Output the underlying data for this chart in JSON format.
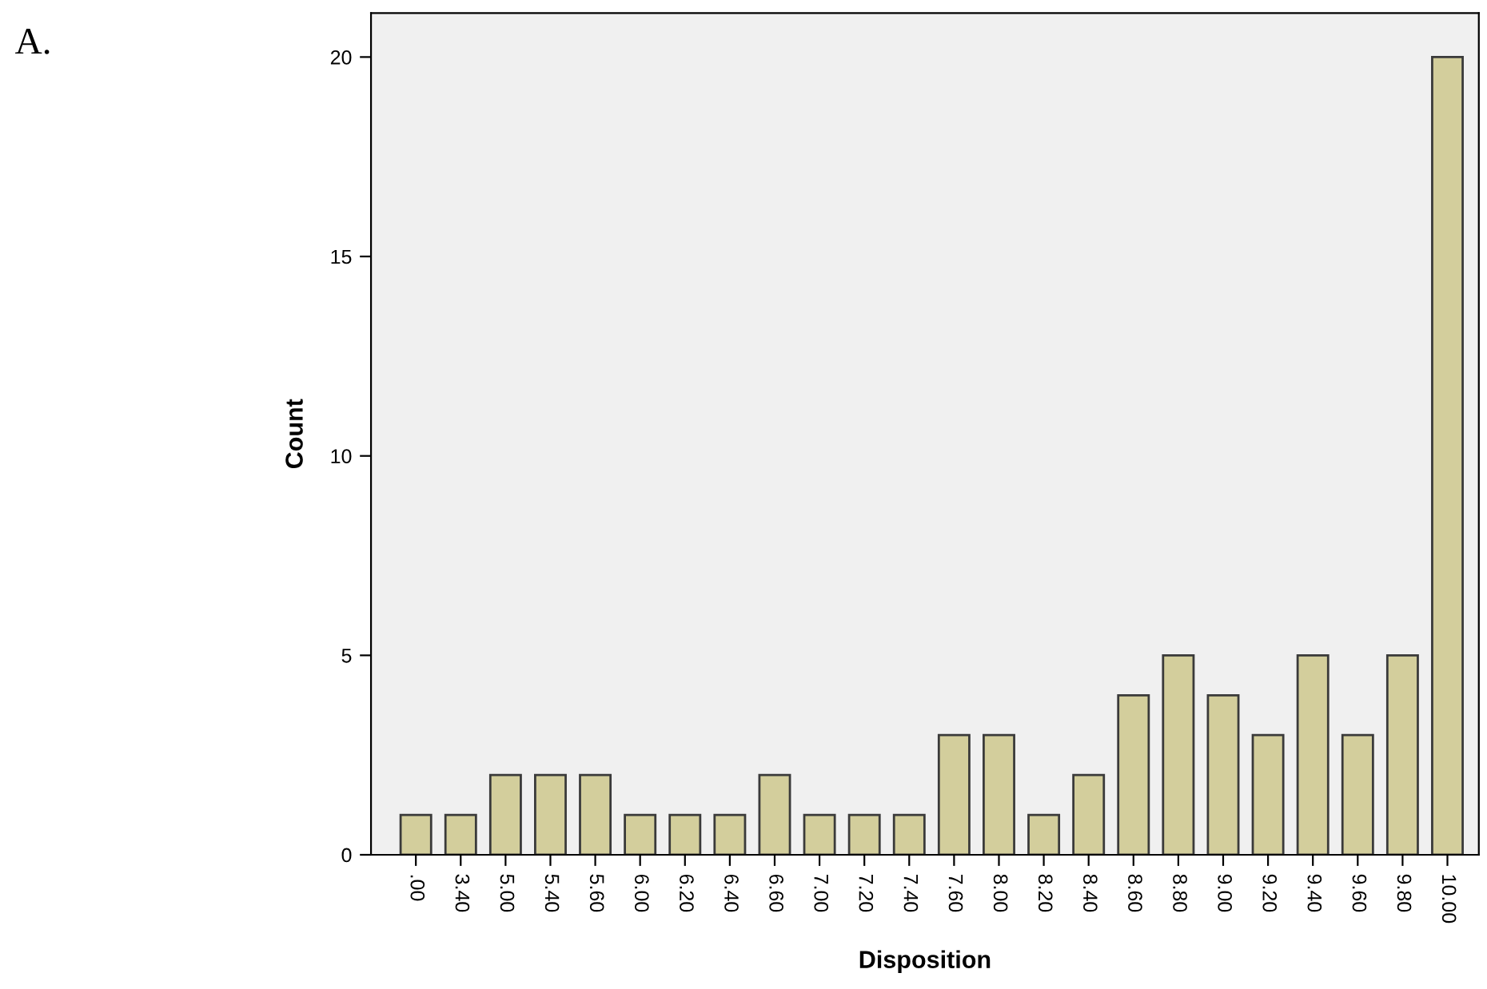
{
  "chart_data": {
    "type": "bar",
    "categories": [
      ".00",
      "3.40",
      "5.00",
      "5.40",
      "5.60",
      "6.00",
      "6.20",
      "6.40",
      "6.60",
      "7.00",
      "7.20",
      "7.40",
      "7.60",
      "8.00",
      "8.20",
      "8.40",
      "8.60",
      "8.80",
      "9.00",
      "9.20",
      "9.40",
      "9.60",
      "9.80",
      "10.00"
    ],
    "values": [
      1,
      1,
      2,
      2,
      2,
      1,
      1,
      1,
      2,
      1,
      1,
      1,
      3,
      3,
      1,
      2,
      4,
      5,
      4,
      3,
      5,
      3,
      5,
      20
    ],
    "color": "#d3ce9c",
    "xlabel": "Disposition",
    "ylabel": "Count",
    "ylim": [
      0,
      21.1
    ],
    "yticks": [
      0,
      5,
      10,
      15,
      20
    ],
    "grid": false,
    "legend": false,
    "annotations": [
      "A."
    ]
  }
}
